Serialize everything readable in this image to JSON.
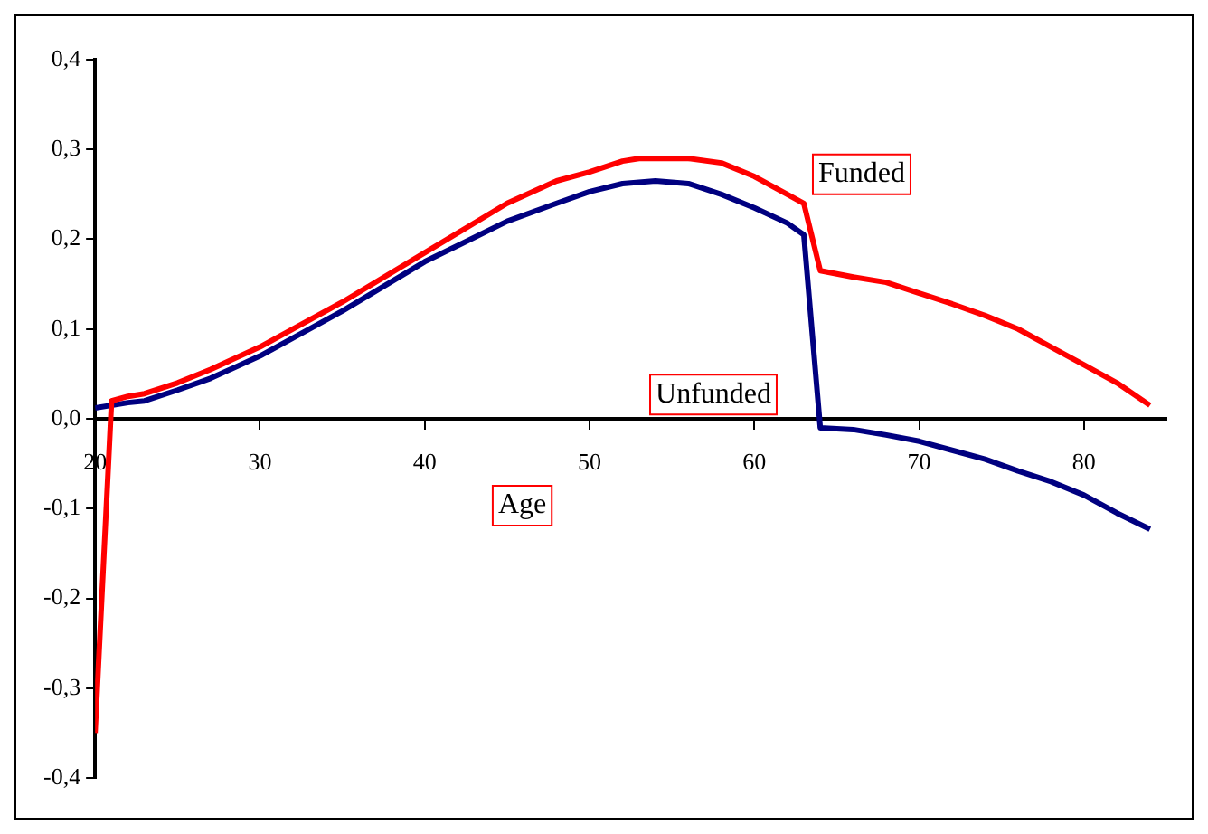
{
  "chart_data": {
    "type": "line",
    "xlabel": "Age",
    "xlim": [
      20,
      85
    ],
    "xticks": [
      20,
      30,
      40,
      50,
      60,
      70,
      80
    ],
    "ylim": [
      -0.4,
      0.4
    ],
    "yticks": [
      {
        "value": -0.4,
        "label": "-0,4"
      },
      {
        "value": -0.3,
        "label": "-0,3"
      },
      {
        "value": -0.2,
        "label": "-0,2"
      },
      {
        "value": -0.1,
        "label": "-0,1"
      },
      {
        "value": 0,
        "label": "0,0"
      },
      {
        "value": 0.1,
        "label": "0,1"
      },
      {
        "value": 0.2,
        "label": "0,2"
      },
      {
        "value": 0.3,
        "label": "0,3"
      },
      {
        "value": 0.4,
        "label": "0,4"
      }
    ],
    "grid": false,
    "legend": false,
    "marker": "none",
    "line_style": "solid",
    "series": [
      {
        "name": "Funded",
        "color": "#ff0000",
        "x": [
          20,
          21,
          22,
          23,
          25,
          27,
          30,
          35,
          40,
          45,
          48,
          50,
          52,
          53,
          56,
          58,
          60,
          62,
          63,
          64,
          66,
          68,
          70,
          72,
          74,
          76,
          78,
          80,
          82,
          84
        ],
        "values": [
          -0.35,
          0.02,
          0.025,
          0.028,
          0.04,
          0.055,
          0.08,
          0.13,
          0.185,
          0.24,
          0.265,
          0.275,
          0.287,
          0.29,
          0.29,
          0.285,
          0.27,
          0.25,
          0.24,
          0.165,
          0.158,
          0.152,
          0.14,
          0.128,
          0.115,
          0.1,
          0.08,
          0.06,
          0.04,
          0.015
        ]
      },
      {
        "name": "Unfunded",
        "color": "#000080",
        "x": [
          20,
          22,
          23,
          25,
          27,
          30,
          35,
          40,
          45,
          48,
          50,
          52,
          54,
          56,
          58,
          60,
          62,
          63,
          64,
          66,
          68,
          70,
          72,
          74,
          76,
          78,
          80,
          82,
          84
        ],
        "values": [
          0.012,
          0.018,
          0.02,
          0.032,
          0.045,
          0.07,
          0.12,
          0.175,
          0.22,
          0.24,
          0.253,
          0.262,
          0.265,
          0.262,
          0.25,
          0.235,
          0.218,
          0.205,
          -0.01,
          -0.012,
          -0.018,
          -0.025,
          -0.035,
          -0.045,
          -0.058,
          -0.07,
          -0.085,
          -0.105,
          -0.123
        ]
      }
    ]
  }
}
